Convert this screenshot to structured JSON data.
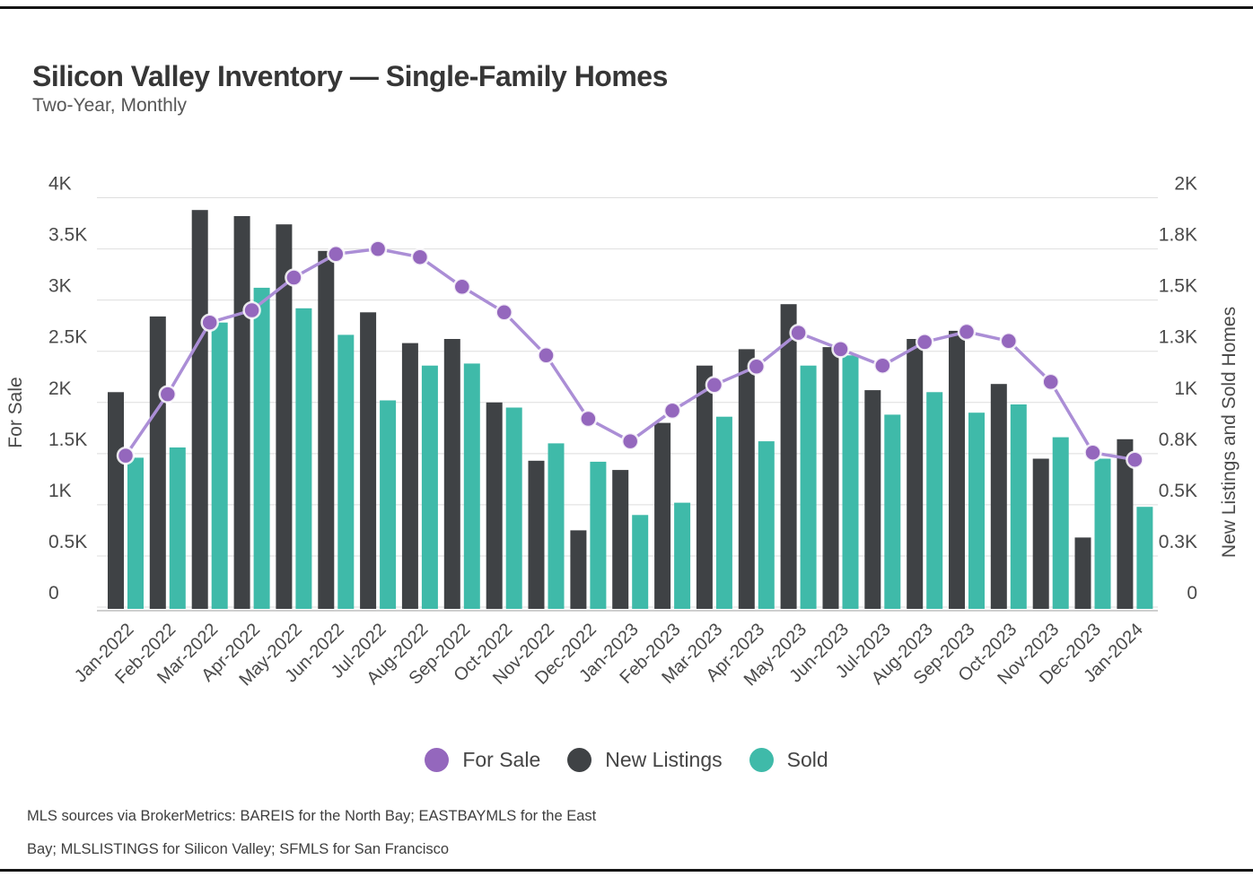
{
  "header": {
    "title": "Silicon Valley Inventory — Single-Family Homes",
    "subtitle": "Two-Year, Monthly"
  },
  "chart_data": {
    "type": "combo-bar-line",
    "title": "Silicon Valley Inventory — Single-Family Homes",
    "subtitle": "Two-Year, Monthly",
    "categories": [
      "Jan-2022",
      "Feb-2022",
      "Mar-2022",
      "Apr-2022",
      "May-2022",
      "Jun-2022",
      "Jul-2022",
      "Aug-2022",
      "Sep-2022",
      "Oct-2022",
      "Nov-2022",
      "Dec-2022",
      "Jan-2023",
      "Feb-2023",
      "Mar-2023",
      "Apr-2023",
      "May-2023",
      "Jun-2023",
      "Jul-2023",
      "Aug-2023",
      "Sep-2023",
      "Oct-2023",
      "Nov-2023",
      "Dec-2023",
      "Jan-2024"
    ],
    "series": [
      {
        "name": "For Sale",
        "type": "line",
        "axis": "left",
        "color": "#ab8ed6",
        "point_color": "#9467bd",
        "values": [
          1480,
          2080,
          2780,
          2900,
          3220,
          3450,
          3500,
          3420,
          3130,
          2880,
          2460,
          1840,
          1620,
          1920,
          2170,
          2350,
          2680,
          2520,
          2360,
          2590,
          2690,
          2600,
          2200,
          1510,
          1440
        ]
      },
      {
        "name": "New Listings",
        "type": "bar",
        "axis": "right",
        "color": "#3f4245",
        "values": [
          1050,
          1420,
          1940,
          1910,
          1870,
          1740,
          1440,
          1290,
          1310,
          1000,
          715,
          375,
          670,
          900,
          1180,
          1260,
          1480,
          1270,
          1060,
          1310,
          1350,
          1090,
          725,
          340,
          820
        ]
      },
      {
        "name": "Sold",
        "type": "bar",
        "axis": "right",
        "color": "#3fbaa9",
        "values": [
          730,
          780,
          1390,
          1560,
          1460,
          1330,
          1010,
          1180,
          1190,
          975,
          800,
          710,
          450,
          510,
          930,
          810,
          1180,
          1230,
          940,
          1050,
          950,
          990,
          830,
          725,
          490
        ]
      }
    ],
    "axes": {
      "left": {
        "title": "For Sale",
        "min": 0,
        "max": 4000,
        "tick_labels": [
          "0",
          "0.5K",
          "1K",
          "1.5K",
          "2K",
          "2.5K",
          "3K",
          "3.5K",
          "4K"
        ]
      },
      "right": {
        "title": "New Listings and Sold Homes",
        "min": 0,
        "max": 2000,
        "tick_labels": [
          "0",
          "0.3K",
          "0.5K",
          "0.8K",
          "1K",
          "1.3K",
          "1.5K",
          "1.8K",
          "2K"
        ]
      }
    },
    "grid": true,
    "legend_position": "bottom"
  },
  "footer": {
    "line1": "MLS sources via BrokerMetrics: BAREIS for the North Bay; EASTBAYMLS for the East",
    "line2": "Bay; MLSLISTINGS for Silicon Valley; SFMLS for San Francisco"
  }
}
